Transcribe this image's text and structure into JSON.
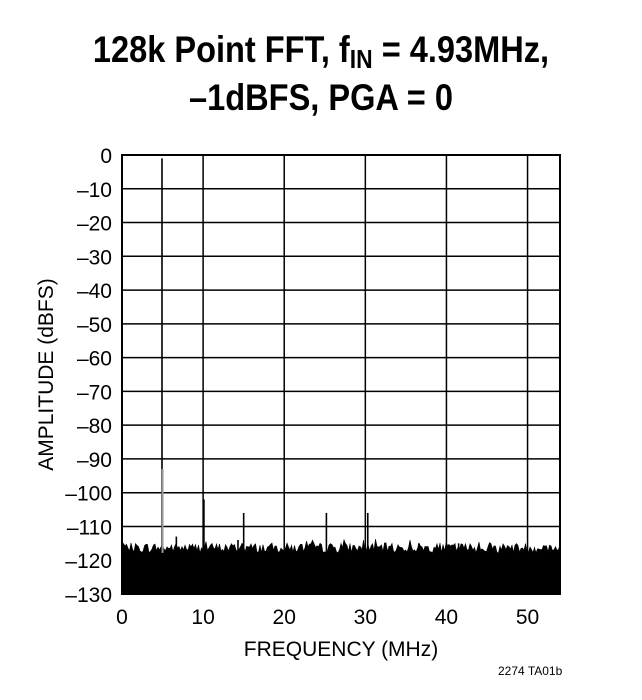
{
  "figure_id": "2274 TA01b",
  "chart_data": {
    "type": "line",
    "title": {
      "line1_pre": "128k Point FFT, f",
      "line1_sub": "IN",
      "line1_post": " = 4.93MHz,",
      "line2": "–1dBFS, PGA = 0"
    },
    "xlabel": "FREQUENCY (MHz)",
    "ylabel": "AMPLITUDE (dBFS)",
    "xlim": [
      0,
      54
    ],
    "ylim": [
      -130,
      0
    ],
    "xticks": [
      0,
      10,
      20,
      30,
      40,
      50
    ],
    "xtick_labels": [
      "0",
      "10",
      "20",
      "30",
      "40",
      "50"
    ],
    "yticks": [
      0,
      -10,
      -20,
      -30,
      -40,
      -50,
      -60,
      -70,
      -80,
      -90,
      -100,
      -110,
      -120,
      -130
    ],
    "ytick_labels": [
      "0",
      "–10",
      "–20",
      "–30",
      "–40",
      "–50",
      "–60",
      "–70",
      "–80",
      "–90",
      "–100",
      "–110",
      "–120",
      "–130"
    ],
    "grid": true,
    "noise_floor_dbfs": -119,
    "series": [
      {
        "values_kind": "spectral spurs",
        "x": [
          4.93,
          5.0,
          6.7,
          10.1,
          14.3,
          15.0,
          25.2,
          30.3,
          36.6,
          41.5,
          48.5
        ],
        "y": [
          -1,
          -93,
          -113,
          -102,
          -114,
          -106,
          -106,
          -106,
          -115,
          -115,
          -116
        ]
      }
    ]
  }
}
